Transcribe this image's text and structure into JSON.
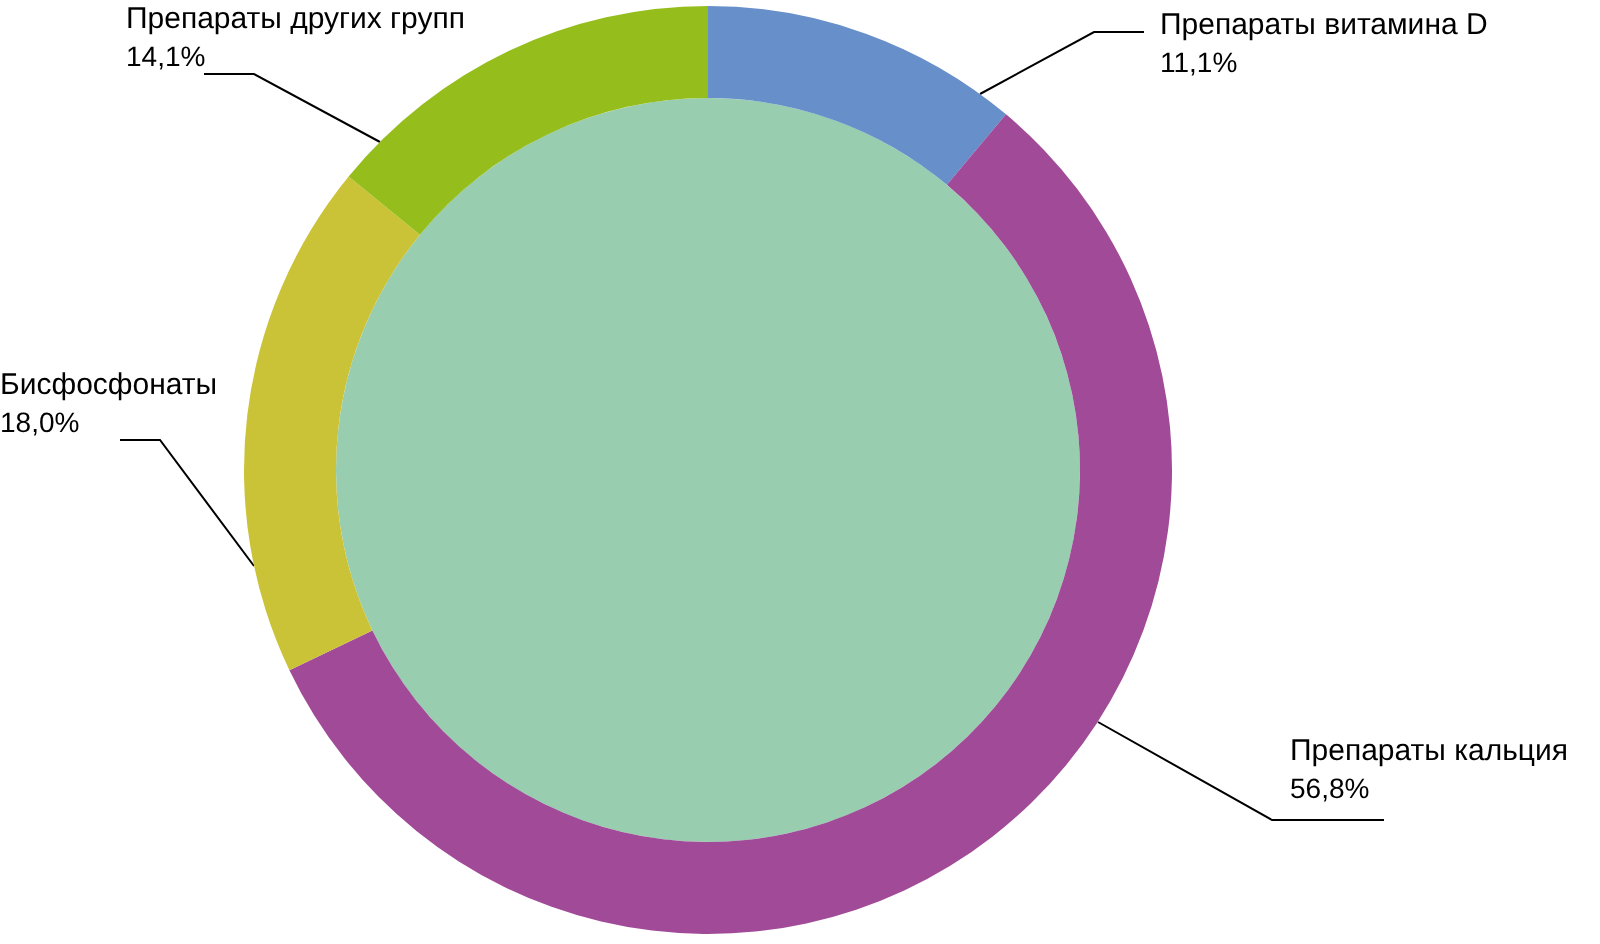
{
  "chart_data": {
    "type": "donut",
    "categories": [
      "Препараты витамина D",
      "Препараты кальция",
      "Бисфосфонаты",
      "Препараты других групп"
    ],
    "values": [
      11.1,
      56.8,
      18.0,
      14.1
    ],
    "colors": [
      "#678fca",
      "#a04a98",
      "#cac337",
      "#95be1c"
    ],
    "value_labels": [
      "11,1%",
      "56,8%",
      "18,0%",
      "14,1%"
    ]
  }
}
